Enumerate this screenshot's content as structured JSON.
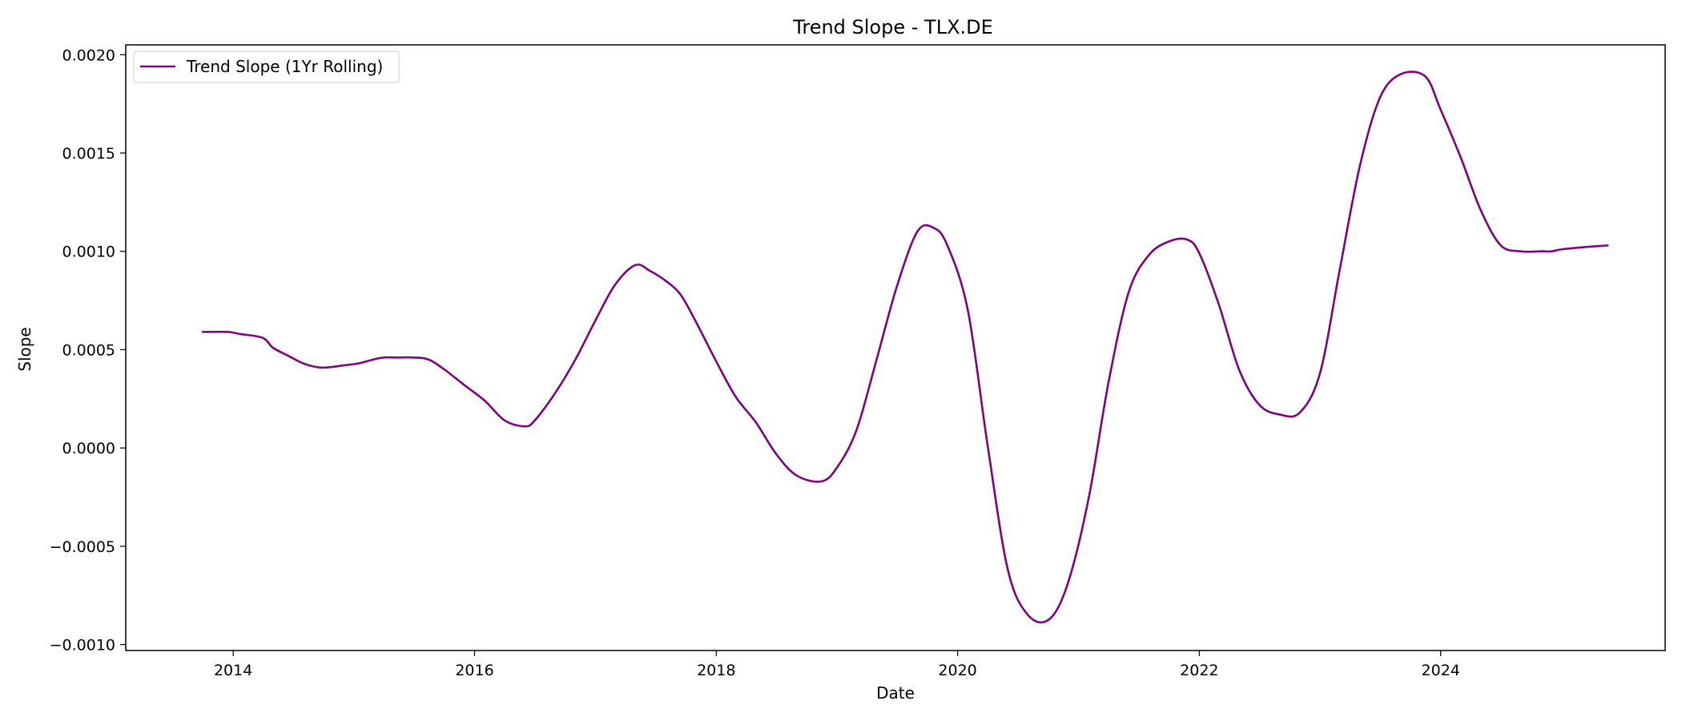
{
  "chart_data": {
    "type": "line",
    "title": "Trend Slope - TLX.DE",
    "xlabel": "Date",
    "ylabel": "Slope",
    "x_ticks": [
      "2014",
      "2016",
      "2018",
      "2020",
      "2022",
      "2024"
    ],
    "y_ticks": [
      "−0.0010",
      "−0.0005",
      "0.0000",
      "0.0005",
      "0.0010",
      "0.0015",
      "0.0020"
    ],
    "y_tick_values": [
      -0.001,
      -0.0005,
      0.0,
      0.0005,
      0.001,
      0.0015,
      0.002
    ],
    "xlim": [
      "2013-02-10",
      "2025-11-10"
    ],
    "ylim": [
      -0.00103,
      0.00205
    ],
    "grid": false,
    "legend_position": "top-left",
    "series": [
      {
        "name": "Trend Slope (1Yr Rolling)",
        "color": "#800080",
        "x": [
          "2013-10-01",
          "2013-12-15",
          "2014-01-20",
          "2014-03-31",
          "2014-05-01",
          "2014-06-15",
          "2014-08-01",
          "2014-09-15",
          "2014-10-15",
          "2014-12-01",
          "2015-01-15",
          "2015-03-01",
          "2015-04-01",
          "2015-05-15",
          "2015-07-01",
          "2015-08-15",
          "2015-10-01",
          "2015-12-01",
          "2016-02-01",
          "2016-04-01",
          "2016-06-01",
          "2016-07-01",
          "2016-09-01",
          "2016-11-01",
          "2017-01-01",
          "2017-03-01",
          "2017-05-01",
          "2017-06-15",
          "2017-08-01",
          "2017-09-15",
          "2017-11-01",
          "2018-01-01",
          "2018-03-01",
          "2018-05-01",
          "2018-07-01",
          "2018-09-01",
          "2018-11-15",
          "2019-01-01",
          "2019-03-01",
          "2019-05-01",
          "2019-07-01",
          "2019-09-01",
          "2019-10-20",
          "2019-12-01",
          "2020-02-01",
          "2020-04-01",
          "2020-06-01",
          "2020-08-01",
          "2020-10-05",
          "2020-12-01",
          "2021-02-01",
          "2021-04-01",
          "2021-06-01",
          "2021-08-01",
          "2021-10-01",
          "2021-11-25",
          "2022-01-01",
          "2022-03-01",
          "2022-05-01",
          "2022-07-01",
          "2022-09-01",
          "2022-11-01",
          "2023-01-01",
          "2023-03-01",
          "2023-05-01",
          "2023-07-01",
          "2023-09-01",
          "2023-11-15",
          "2024-01-01",
          "2024-03-01",
          "2024-05-01",
          "2024-07-01",
          "2024-09-01",
          "2024-11-01",
          "2024-12-01",
          "2025-01-01",
          "2025-03-01",
          "2025-05-20"
        ],
        "values": [
          0.00059,
          0.00059,
          0.00058,
          0.00056,
          0.00051,
          0.00047,
          0.00043,
          0.00041,
          0.00041,
          0.00042,
          0.00043,
          0.00045,
          0.00046,
          0.00046,
          0.00046,
          0.00045,
          0.0004,
          0.00032,
          0.00024,
          0.00014,
          0.00011,
          0.00014,
          0.00028,
          0.00045,
          0.00065,
          0.00083,
          0.00093,
          0.0009,
          0.00085,
          0.00078,
          0.00064,
          0.00044,
          0.00026,
          0.00013,
          -3e-05,
          -0.00014,
          -0.00017,
          -0.0001,
          9e-05,
          0.00045,
          0.00082,
          0.0011,
          0.00112,
          0.00103,
          0.0007,
          1e-05,
          -0.00062,
          -0.00085,
          -0.00087,
          -0.00068,
          -0.00025,
          0.00033,
          0.00079,
          0.00098,
          0.00105,
          0.00106,
          0.00099,
          0.00073,
          0.0004,
          0.00022,
          0.00017,
          0.00018,
          0.00038,
          0.0009,
          0.00143,
          0.00178,
          0.0019,
          0.00189,
          0.00172,
          0.00148,
          0.00121,
          0.00103,
          0.001,
          0.001,
          0.001,
          0.00101,
          0.00102,
          0.00103
        ]
      }
    ]
  }
}
